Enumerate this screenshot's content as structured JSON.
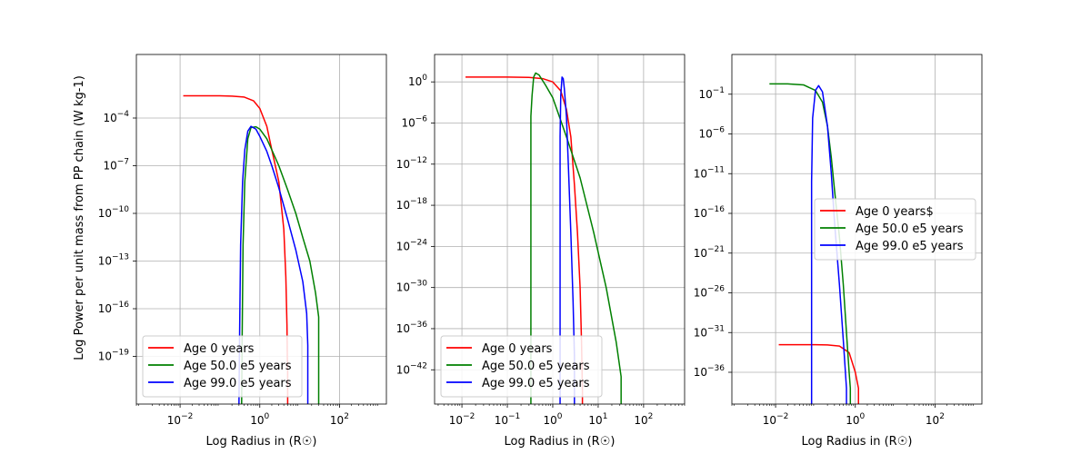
{
  "chart_data": [
    {
      "type": "line",
      "xlabel": "Log Radius in (R☉)",
      "ylabel": "Log Power per unit mass from PP chain (W kg-1)",
      "xscale": "log",
      "yscale": "log",
      "xlim": [
        0.0008,
        1500
      ],
      "ylim": [
        1e-22,
        1
      ],
      "xticks": [
        {
          "v": 0.01,
          "b": "10",
          "e": "−2"
        },
        {
          "v": 1,
          "b": "10",
          "e": "0"
        },
        {
          "v": 100,
          "b": "10",
          "e": "2"
        }
      ],
      "yticks": [
        {
          "v": 1e-19,
          "b": "10",
          "e": "−19"
        },
        {
          "v": 1e-16,
          "b": "10",
          "e": "−16"
        },
        {
          "v": 1e-13,
          "b": "10",
          "e": "−13"
        },
        {
          "v": 1e-10,
          "b": "10",
          "e": "−10"
        },
        {
          "v": 1e-07,
          "b": "10",
          "e": "−7"
        },
        {
          "v": 0.0001,
          "b": "10",
          "e": "−4"
        }
      ],
      "grid": true,
      "legend_position": "lower-left",
      "series": [
        {
          "name": "Age 0 years",
          "color": "#ff0000",
          "x": [
            0.012,
            0.05,
            0.1,
            0.2,
            0.4,
            0.7,
            1.0,
            1.5,
            2.0,
            3.0,
            4.0,
            4.5,
            4.8,
            4.9,
            5.0,
            5.0
          ],
          "y": [
            0.0025,
            0.0025,
            0.0025,
            0.0024,
            0.0021,
            0.0012,
            0.0004,
            3e-05,
            1e-06,
            1e-08,
            1e-11,
            1e-14,
            1e-17,
            1e-19,
            1e-20,
            1e-22
          ]
        },
        {
          "name": "Age 50.0 e5 years",
          "color": "#008000",
          "x": [
            0.35,
            0.36,
            0.38,
            0.42,
            0.5,
            0.6,
            0.8,
            1.0,
            1.5,
            2,
            3,
            5,
            8,
            12,
            18,
            25,
            30,
            30
          ],
          "y": [
            1e-22,
            1e-18,
            1e-12,
            1e-08,
            5e-06,
            2.5e-05,
            2.8e-05,
            2e-05,
            5e-06,
            1e-06,
            1e-07,
            3e-09,
            1e-10,
            3e-12,
            1e-13,
            1e-15,
            3e-17,
            1e-22
          ]
        },
        {
          "name": "Age 99.0 e5 years",
          "color": "#0000ff",
          "x": [
            0.3,
            0.31,
            0.33,
            0.37,
            0.42,
            0.5,
            0.6,
            0.8,
            1.0,
            1.5,
            2,
            3,
            5,
            8,
            12,
            15,
            16,
            16
          ],
          "y": [
            1e-22,
            1e-18,
            1e-12,
            1e-08,
            1e-06,
            1.5e-05,
            3e-05,
            2e-05,
            7e-06,
            8e-07,
            1e-07,
            4e-09,
            4e-11,
            5e-13,
            5e-15,
            5e-17,
            5e-19,
            1e-22
          ]
        }
      ]
    },
    {
      "type": "line",
      "xlabel": "Log Radius in (R☉)",
      "ylabel": "",
      "xscale": "log",
      "yscale": "log",
      "xlim": [
        0.0025,
        800
      ],
      "ylim": [
        1e-47,
        10000.0
      ],
      "xticks": [
        {
          "v": 0.01,
          "b": "10",
          "e": "−2"
        },
        {
          "v": 0.1,
          "b": "10",
          "e": "−1"
        },
        {
          "v": 1,
          "b": "10",
          "e": "0"
        },
        {
          "v": 10,
          "b": "10",
          "e": "1"
        },
        {
          "v": 100,
          "b": "10",
          "e": "2"
        }
      ],
      "yticks": [
        {
          "v": 1e-42,
          "b": "10",
          "e": "−42"
        },
        {
          "v": 1e-36,
          "b": "10",
          "e": "−36"
        },
        {
          "v": 1e-30,
          "b": "10",
          "e": "−30"
        },
        {
          "v": 1e-24,
          "b": "10",
          "e": "−24"
        },
        {
          "v": 1e-18,
          "b": "10",
          "e": "−18"
        },
        {
          "v": 1e-12,
          "b": "10",
          "e": "−12"
        },
        {
          "v": 1e-06,
          "b": "10",
          "e": "−6"
        },
        {
          "v": 1,
          "b": "10",
          "e": "0"
        }
      ],
      "grid": true,
      "legend_position": "lower-left",
      "series": [
        {
          "name": "Age 0 years",
          "color": "#ff0000",
          "x": [
            0.012,
            0.05,
            0.1,
            0.3,
            0.6,
            1.0,
            1.5,
            2.0,
            2.5,
            3.0,
            3.5,
            4.0,
            4.3,
            4.5,
            4.5
          ],
          "y": [
            5,
            5,
            5,
            4.5,
            3,
            1,
            0.05,
            0.0001,
            1e-08,
            1e-15,
            1e-22,
            1e-30,
            1e-38,
            1e-45,
            1e-47
          ]
        },
        {
          "name": "Age 50.0 e5 years",
          "color": "#008000",
          "x": [
            0.33,
            0.33,
            0.35,
            0.38,
            0.42,
            0.5,
            0.7,
            1.0,
            2,
            4,
            8,
            15,
            25,
            32,
            32
          ],
          "y": [
            1e-47,
            1e-05,
            0.01,
            5,
            20,
            10,
            0.3,
            0.005,
            1e-08,
            1e-14,
            1e-22,
            1e-30,
            1e-38,
            1e-43,
            1e-47
          ]
        },
        {
          "name": "Age 99.0 e5 years",
          "color": "#0000ff",
          "x": [
            1.45,
            1.45,
            1.5,
            1.6,
            1.7,
            1.8,
            2.0,
            2.2,
            2.5,
            2.8,
            3.0,
            3.0
          ],
          "y": [
            1e-47,
            1e-08,
            0.01,
            5,
            3,
            0.1,
            1e-05,
            1e-12,
            1e-22,
            1e-32,
            1e-40,
            1e-47
          ]
        }
      ]
    },
    {
      "type": "line",
      "xlabel": "Log Radius in (R☉)",
      "ylabel": "",
      "xscale": "log",
      "yscale": "log",
      "xlim": [
        0.0008,
        1500
      ],
      "ylim": [
        1e-40,
        10000.0
      ],
      "xticks": [
        {
          "v": 0.01,
          "b": "10",
          "e": "−2"
        },
        {
          "v": 1,
          "b": "10",
          "e": "0"
        },
        {
          "v": 100,
          "b": "10",
          "e": "2"
        }
      ],
      "yticks": [
        {
          "v": 1e-36,
          "b": "10",
          "e": "−36"
        },
        {
          "v": 1e-31,
          "b": "10",
          "e": "−31"
        },
        {
          "v": 1e-26,
          "b": "10",
          "e": "−26"
        },
        {
          "v": 1e-21,
          "b": "10",
          "e": "−21"
        },
        {
          "v": 1e-16,
          "b": "10",
          "e": "−16"
        },
        {
          "v": 1e-11,
          "b": "10",
          "e": "−11"
        },
        {
          "v": 1e-06,
          "b": "10",
          "e": "−6"
        },
        {
          "v": 0.1,
          "b": "10",
          "e": "−1"
        }
      ],
      "grid": true,
      "legend_position": "center-right",
      "series": [
        {
          "name": "Age 0 years$",
          "color": "#ff0000",
          "x": [
            0.012,
            0.05,
            0.1,
            0.2,
            0.4,
            0.7,
            1.0,
            1.2,
            1.2
          ],
          "y": [
            3e-33,
            3e-33,
            3e-33,
            2.8e-33,
            2e-33,
            3e-34,
            1e-36,
            1e-38,
            1e-40
          ]
        },
        {
          "name": "Age 50.0 e5 years",
          "color": "#008000",
          "x": [
            0.007,
            0.02,
            0.05,
            0.1,
            0.15,
            0.2,
            0.25,
            0.3,
            0.4,
            0.5,
            0.6,
            0.7,
            0.75,
            0.75
          ],
          "y": [
            2,
            2,
            1.5,
            0.3,
            0.01,
            1e-05,
            1e-09,
            1e-13,
            1e-19,
            1e-25,
            1e-31,
            1e-36,
            1e-38,
            1e-40
          ]
        },
        {
          "name": "Age 99.0 e5 years",
          "color": "#0000ff",
          "x": [
            0.08,
            0.08,
            0.085,
            0.1,
            0.12,
            0.15,
            0.2,
            0.25,
            0.3,
            0.4,
            0.5,
            0.6,
            0.6
          ],
          "y": [
            1e-40,
            1e-12,
            0.0001,
            0.3,
            1.2,
            0.2,
            1e-05,
            1e-11,
            1e-17,
            1e-25,
            1e-32,
            1e-38,
            1e-40
          ]
        }
      ]
    }
  ]
}
